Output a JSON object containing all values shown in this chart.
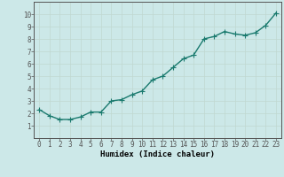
{
  "x": [
    0,
    1,
    2,
    3,
    4,
    5,
    6,
    7,
    8,
    9,
    10,
    11,
    12,
    13,
    14,
    15,
    16,
    17,
    18,
    19,
    20,
    21,
    22,
    23
  ],
  "y": [
    2.3,
    1.8,
    1.5,
    1.5,
    1.7,
    2.1,
    2.1,
    3.0,
    3.1,
    3.5,
    3.8,
    4.7,
    5.0,
    5.7,
    6.4,
    6.7,
    8.0,
    8.2,
    8.6,
    8.4,
    8.3,
    8.5,
    9.1,
    10.1
  ],
  "xlabel": "Humidex (Indice chaleur)",
  "ylim": [
    0,
    11
  ],
  "xlim": [
    -0.5,
    23.5
  ],
  "yticks": [
    1,
    2,
    3,
    4,
    5,
    6,
    7,
    8,
    9,
    10
  ],
  "xticks": [
    0,
    1,
    2,
    3,
    4,
    5,
    6,
    7,
    8,
    9,
    10,
    11,
    12,
    13,
    14,
    15,
    16,
    17,
    18,
    19,
    20,
    21,
    22,
    23
  ],
  "line_color": "#1a7a6e",
  "marker_color": "#1a7a6e",
  "bg_color": "#cce8e8",
  "grid_color": "#c0d8d0",
  "axes_bg": "#cce8e8",
  "border_color": "#555555",
  "xlabel_fontsize": 6.5,
  "tick_fontsize": 5.5,
  "line_width": 1.0,
  "marker_size": 2.0
}
